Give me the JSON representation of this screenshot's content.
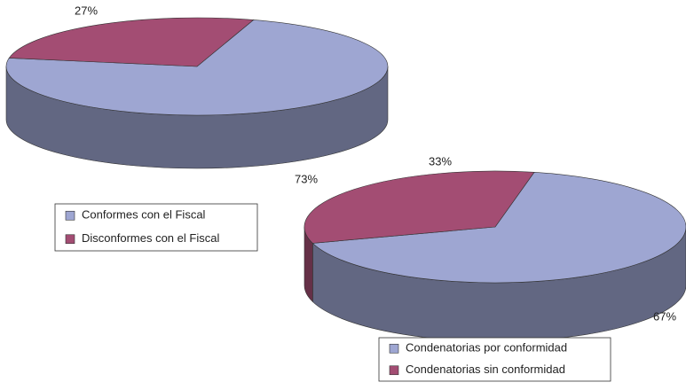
{
  "chart_data": [
    {
      "type": "pie",
      "categories": [
        "Conformes con el Fiscal",
        "Disconformes con el Fiscal"
      ],
      "values": [
        73,
        27
      ],
      "value_labels": [
        "73%",
        "27%"
      ],
      "colors": [
        "#9ea6d2",
        "#a34d73"
      ]
    },
    {
      "type": "pie",
      "categories": [
        "Condenatorias por conformidad",
        "Condenatorias sin conformidad"
      ],
      "values": [
        67,
        33
      ],
      "value_labels": [
        "67%",
        "33%"
      ],
      "colors": [
        "#9ea6d2",
        "#a34d73"
      ]
    }
  ]
}
